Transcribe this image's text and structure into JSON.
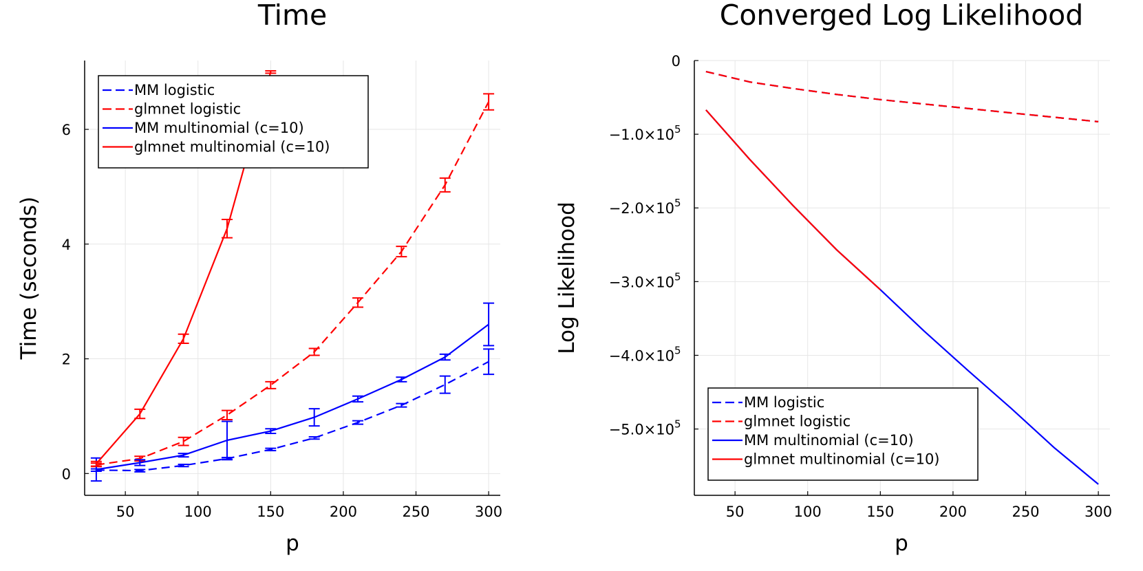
{
  "chart_data": [
    {
      "type": "line",
      "title": "Time",
      "xlabel": "p",
      "ylabel": "Time (seconds)",
      "xlim": [
        22,
        308
      ],
      "ylim": [
        -0.38,
        7.2
      ],
      "grid": true,
      "legend_position": "top-left",
      "x_ticks": [
        {
          "value": 50,
          "label": "50"
        },
        {
          "value": 100,
          "label": "100"
        },
        {
          "value": 150,
          "label": "150"
        },
        {
          "value": 200,
          "label": "200"
        },
        {
          "value": 250,
          "label": "250"
        },
        {
          "value": 300,
          "label": "300"
        }
      ],
      "y_ticks": [
        {
          "value": 0,
          "label": "0"
        },
        {
          "value": 2,
          "label": "2"
        },
        {
          "value": 4,
          "label": "4"
        },
        {
          "value": 6,
          "label": "6"
        }
      ],
      "x": [
        30,
        60,
        90,
        120,
        150,
        180,
        210,
        240,
        270,
        300
      ],
      "series": [
        {
          "name": "MM logistic",
          "color": "#0000ff",
          "dash": "dashed",
          "values": [
            0.06,
            0.05,
            0.14,
            0.26,
            0.42,
            0.62,
            0.89,
            1.19,
            1.55,
            1.95
          ],
          "errors": [
            0.02,
            0.02,
            0.02,
            0.02,
            0.02,
            0.02,
            0.03,
            0.03,
            0.15,
            0.22
          ]
        },
        {
          "name": "glmnet logistic",
          "color": "#ff0000",
          "dash": "dashed",
          "values": [
            0.15,
            0.26,
            0.56,
            1.02,
            1.54,
            2.12,
            2.98,
            3.87,
            5.03,
            6.48
          ],
          "errors": [
            0.03,
            0.04,
            0.07,
            0.08,
            0.06,
            0.06,
            0.08,
            0.09,
            0.12,
            0.14
          ]
        },
        {
          "name": "MM multinomial (c=10)",
          "color": "#0000ff",
          "dash": "solid",
          "values": [
            0.07,
            0.19,
            0.32,
            0.58,
            0.74,
            0.98,
            1.3,
            1.64,
            2.03,
            2.6
          ],
          "errors": [
            0.2,
            0.05,
            0.03,
            0.33,
            0.04,
            0.15,
            0.05,
            0.04,
            0.05,
            0.37
          ]
        },
        {
          "name": "glmnet multinomial (c=10)",
          "color": "#ff0000",
          "dash": "solid",
          "values": [
            0.17,
            1.04,
            2.35,
            4.27,
            7.0,
            null,
            null,
            null,
            null,
            null
          ],
          "errors": [
            0.04,
            0.08,
            0.08,
            0.16,
            0.02,
            null,
            null,
            null,
            null,
            null
          ]
        }
      ]
    },
    {
      "type": "line",
      "title": "Converged Log Likelihood",
      "xlabel": "p",
      "ylabel": "Log Likelihood",
      "xlim": [
        22,
        308
      ],
      "ylim": [
        -590000,
        0
      ],
      "grid": true,
      "legend_position": "bottom-left",
      "x_ticks": [
        {
          "value": 50,
          "label": "50"
        },
        {
          "value": 100,
          "label": "100"
        },
        {
          "value": 150,
          "label": "150"
        },
        {
          "value": 200,
          "label": "200"
        },
        {
          "value": 250,
          "label": "250"
        },
        {
          "value": 300,
          "label": "300"
        }
      ],
      "y_ticks": [
        {
          "value": 0,
          "label": "0",
          "sup": ""
        },
        {
          "value": -100000,
          "label": "−1.0×10",
          "sup": "5"
        },
        {
          "value": -200000,
          "label": "−2.0×10",
          "sup": "5"
        },
        {
          "value": -300000,
          "label": "−3.0×10",
          "sup": "5"
        },
        {
          "value": -400000,
          "label": "−4.0×10",
          "sup": "5"
        },
        {
          "value": -500000,
          "label": "−5.0×10",
          "sup": "5"
        }
      ],
      "x": [
        30,
        60,
        90,
        120,
        150,
        180,
        210,
        240,
        270,
        300
      ],
      "series": [
        {
          "name": "MM logistic",
          "color": "#0000ff",
          "dash": "dashed",
          "values": [
            -15000,
            -29000,
            -38000,
            -46000,
            -53000,
            -59000,
            -65000,
            -71000,
            -77000,
            -83000
          ]
        },
        {
          "name": "glmnet logistic",
          "color": "#ff0000",
          "dash": "dashed",
          "values": [
            -15000,
            -29000,
            -38000,
            -46000,
            -53000,
            -59000,
            -65000,
            -71000,
            -77000,
            -83000
          ]
        },
        {
          "name": "MM multinomial (c=10)",
          "color": "#0000ff",
          "dash": "solid",
          "values": [
            -67000,
            -134000,
            -197000,
            -257000,
            -311000,
            -367000,
            -420000,
            -472000,
            -526000,
            -575000
          ]
        },
        {
          "name": "glmnet multinomial (c=10)",
          "color": "#ff0000",
          "dash": "solid",
          "values": [
            -67000,
            -134000,
            -197000,
            -257000,
            -311000,
            null,
            null,
            null,
            null,
            null
          ]
        }
      ]
    }
  ]
}
